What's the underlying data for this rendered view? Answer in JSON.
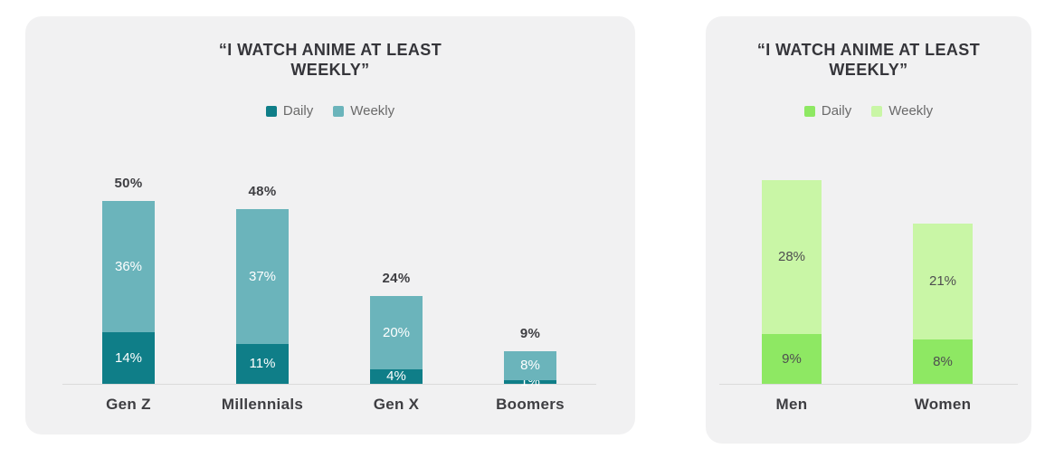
{
  "theme": {
    "page_background": "#FFFFFF",
    "card_background": "#F1F1F2",
    "title_color": "#35353A",
    "value_label_color": "#3E3E42",
    "legend_text_color": "#6A6A6A",
    "axis_line_color": "#DBDBDB"
  },
  "chart_data": [
    {
      "type": "bar",
      "stacked": true,
      "title": "“I WATCH ANIME AT LEAST WEEKLY”",
      "title_lines": [
        "“I WATCH ANIME AT LEAST",
        "WEEKLY”"
      ],
      "legend_position": "top",
      "grid": false,
      "categories": [
        "Gen Z",
        "Millennials",
        "Gen X",
        "Boomers"
      ],
      "series": [
        {
          "name": "Daily",
          "color": "#0F7E88",
          "label_color": "#FFFFFF",
          "values": [
            14,
            11,
            4,
            1
          ],
          "labels": [
            "14%",
            "11%",
            "4%",
            "1%"
          ]
        },
        {
          "name": "Weekly",
          "color": "#6BB4BB",
          "label_color": "#FFFFFF",
          "values": [
            36,
            37,
            20,
            8
          ],
          "labels": [
            "36%",
            "37%",
            "20%",
            "8%"
          ]
        }
      ],
      "totals": {
        "show": true,
        "values": [
          50,
          48,
          24,
          9
        ],
        "labels": [
          "50%",
          "48%",
          "24%",
          "9%"
        ]
      },
      "ylim": [
        0,
        50
      ]
    },
    {
      "type": "bar",
      "stacked": true,
      "title": "“I WATCH ANIME AT LEAST WEEKLY”",
      "title_lines": [
        "“I WATCH ANIME AT LEAST",
        "WEEKLY”"
      ],
      "legend_position": "top",
      "grid": false,
      "categories": [
        "Men",
        "Women"
      ],
      "series": [
        {
          "name": "Daily",
          "color": "#8EE863",
          "label_color": "#4E4E50",
          "values": [
            9,
            8
          ],
          "labels": [
            "9%",
            "8%"
          ]
        },
        {
          "name": "Weekly",
          "color": "#C9F6A6",
          "label_color": "#4E4E50",
          "values": [
            28,
            21
          ],
          "labels": [
            "28%",
            "21%"
          ]
        }
      ],
      "totals": {
        "show": false,
        "values": [
          37,
          29
        ],
        "labels": []
      },
      "ylim": [
        0,
        37
      ]
    }
  ]
}
